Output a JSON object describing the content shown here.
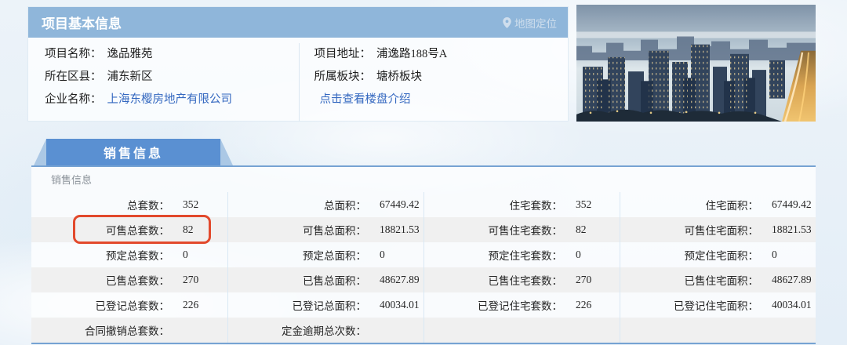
{
  "project_panel": {
    "title": "项目基本信息",
    "map_link": "地图定位",
    "fields_left": [
      {
        "label": "项目名称：",
        "value": "逸品雅苑",
        "link": false
      },
      {
        "label": "所在区县：",
        "value": "浦东新区",
        "link": false
      },
      {
        "label": "企业名称：",
        "value": "上海东樱房地产有限公司",
        "link": true
      }
    ],
    "fields_right": [
      {
        "label": "项目地址：",
        "value": "浦逸路188号A",
        "link": false
      },
      {
        "label": "所属板块：",
        "value": "塘桥板块",
        "link": false
      },
      {
        "label": "",
        "value": "点击查看楼盘介绍",
        "link": true
      }
    ]
  },
  "sales_panel": {
    "tab_label": "销售信息",
    "section_label": "销售信息",
    "highlight": {
      "row": 1,
      "col": 0
    },
    "rows": [
      {
        "shade": false,
        "cells": [
          {
            "label": "总套数：",
            "value": "352"
          },
          {
            "label": "总面积：",
            "value": "67449.42"
          },
          {
            "label": "住宅套数：",
            "value": "352"
          },
          {
            "label": "住宅面积：",
            "value": "67449.42"
          }
        ]
      },
      {
        "shade": true,
        "cells": [
          {
            "label": "可售总套数：",
            "value": "82"
          },
          {
            "label": "可售总面积：",
            "value": "18821.53"
          },
          {
            "label": "可售住宅套数：",
            "value": "82"
          },
          {
            "label": "可售住宅面积：",
            "value": "18821.53"
          }
        ]
      },
      {
        "shade": false,
        "cells": [
          {
            "label": "预定总套数：",
            "value": "0"
          },
          {
            "label": "预定总面积：",
            "value": "0"
          },
          {
            "label": "预定住宅套数：",
            "value": "0"
          },
          {
            "label": "预定住宅面积：",
            "value": "0"
          }
        ]
      },
      {
        "shade": true,
        "cells": [
          {
            "label": "已售总套数：",
            "value": "270"
          },
          {
            "label": "已售总面积：",
            "value": "48627.89"
          },
          {
            "label": "已售住宅套数：",
            "value": "270"
          },
          {
            "label": "已售住宅面积：",
            "value": "48627.89"
          }
        ]
      },
      {
        "shade": false,
        "cells": [
          {
            "label": "已登记总套数：",
            "value": "226"
          },
          {
            "label": "已登记总面积：",
            "value": "40034.01"
          },
          {
            "label": "已登记住宅套数：",
            "value": "226"
          },
          {
            "label": "已登记住宅面积：",
            "value": "40034.01"
          }
        ]
      },
      {
        "shade": true,
        "cells": [
          {
            "label": "合同撤销总套数：",
            "value": ""
          },
          {
            "label": "定金逾期总次数：",
            "value": ""
          },
          {
            "label": "",
            "value": ""
          },
          {
            "label": "",
            "value": ""
          }
        ]
      }
    ]
  },
  "colors": {
    "header-blue": "#8fb6da",
    "tab-blue": "#5a90d2",
    "tab-wedge": "#abc8e5",
    "line-blue": "#76a3d3",
    "link-blue": "#3468c0",
    "highlight-red": "#e2492c",
    "row-shade": "#f0f0f0"
  }
}
